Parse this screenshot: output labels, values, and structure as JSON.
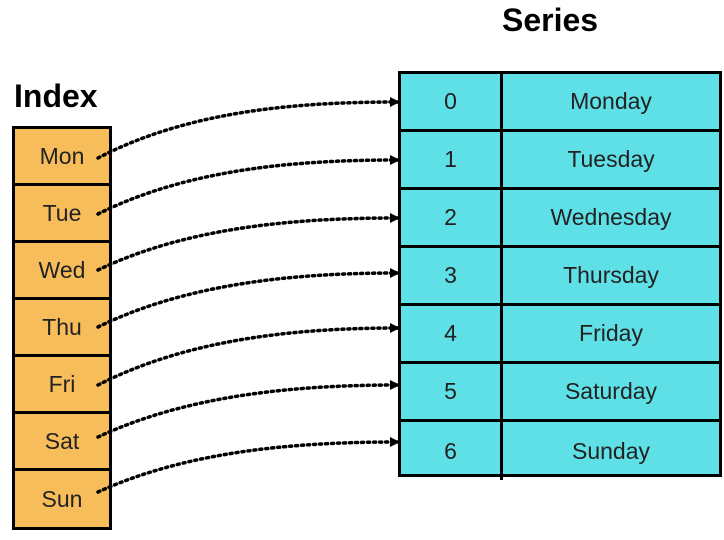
{
  "index": {
    "title": "Index",
    "labels": [
      "Mon",
      "Tue",
      "Wed",
      "Thu",
      "Fri",
      "Sat",
      "Sun"
    ]
  },
  "series": {
    "title": "Series",
    "rows": [
      {
        "idx": "0",
        "value": "Monday"
      },
      {
        "idx": "1",
        "value": "Tuesday"
      },
      {
        "idx": "2",
        "value": "Wednesday"
      },
      {
        "idx": "3",
        "value": "Thursday"
      },
      {
        "idx": "4",
        "value": "Friday"
      },
      {
        "idx": "5",
        "value": "Saturday"
      },
      {
        "idx": "6",
        "value": "Sunday"
      }
    ]
  },
  "colors": {
    "index_fill": "#f8bd5b",
    "series_fill": "#5ee0e6",
    "border": "#000000"
  }
}
